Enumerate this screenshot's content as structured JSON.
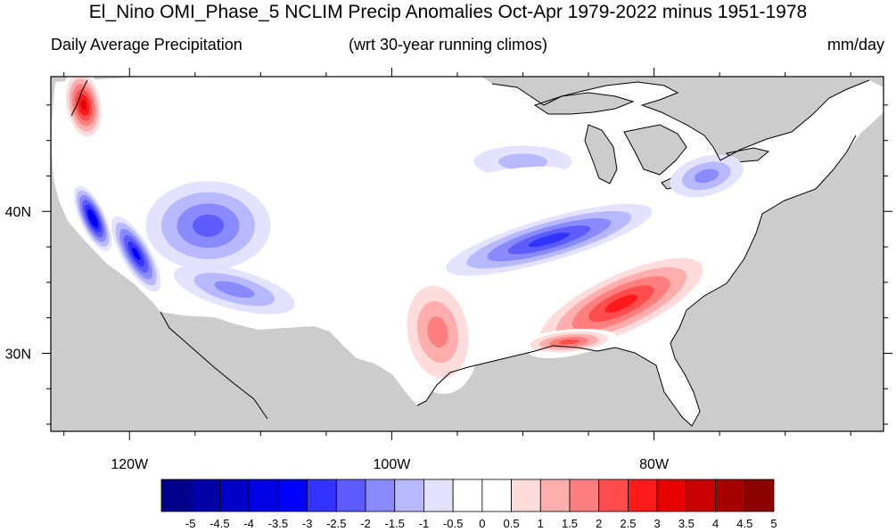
{
  "title": "El_Nino OMI_Phase_5 NCLIM Precip Anomalies Oct-Apr 1979-2022 minus 1951-1978",
  "subtitle_left": "Daily Average Precipitation",
  "subtitle_center": "(wrt 30-year running climos)",
  "subtitle_right": "mm/day",
  "map": {
    "lon_range": [
      -126.0,
      -62.5
    ],
    "lat_range": [
      24.5,
      49.5
    ],
    "lon_ticks": [
      {
        "value": -120,
        "label": "120W"
      },
      {
        "value": -100,
        "label": "100W"
      },
      {
        "value": -80,
        "label": "80W"
      }
    ],
    "lat_ticks": [
      {
        "value": 40,
        "label": "40N"
      },
      {
        "value": 30,
        "label": "30N"
      }
    ],
    "land_color": "#ffffff",
    "masked_color": "#cccccc",
    "anomaly_regions": [
      {
        "name": "pacific-northwest-wet",
        "lon": -123.5,
        "lat": 47.5,
        "value": 3.5
      },
      {
        "name": "california-coast-dry",
        "lon": -122.8,
        "lat": 39.5,
        "value": -3.5
      },
      {
        "name": "sierra-nevada-dry",
        "lon": -119.5,
        "lat": 37.0,
        "value": -3.0
      },
      {
        "name": "great-basin-dry",
        "lon": -114.0,
        "lat": 39.0,
        "value": -2.0
      },
      {
        "name": "southwest-dry",
        "lon": -112.0,
        "lat": 34.5,
        "value": -1.5
      },
      {
        "name": "ohio-valley-dry",
        "lon": -88.0,
        "lat": 38.0,
        "value": -2.5
      },
      {
        "name": "upper-midwest-dry",
        "lon": -90.0,
        "lat": 43.5,
        "value": -1.0
      },
      {
        "name": "new-england-dry",
        "lon": -76.0,
        "lat": 42.5,
        "value": -1.5
      },
      {
        "name": "southeast-wet",
        "lon": -82.5,
        "lat": 33.5,
        "value": 3.0
      },
      {
        "name": "gulf-coast-wet",
        "lon": -86.5,
        "lat": 30.8,
        "value": 2.5
      },
      {
        "name": "texas-wet",
        "lon": -96.5,
        "lat": 31.5,
        "value": 2.0
      },
      {
        "name": "central-plains-wet",
        "lon": -94.0,
        "lat": 40.5,
        "value": 0.5
      }
    ]
  },
  "colorbar": {
    "labels": [
      "-5",
      "-4.5",
      "-4",
      "-3.5",
      "-3",
      "-2.5",
      "-2",
      "-1.5",
      "-1",
      "-0.5",
      "0",
      "0.5",
      "1",
      "1.5",
      "2",
      "2.5",
      "3",
      "3.5",
      "4",
      "4.5",
      "5"
    ],
    "colors": [
      "#00008b",
      "#0000a8",
      "#0000c6",
      "#0000e3",
      "#0000ff",
      "#3333ff",
      "#5c5cff",
      "#8a8aff",
      "#b8b8ff",
      "#e3e3ff",
      "#ffffff",
      "#ffffff",
      "#ffdcdc",
      "#ffadad",
      "#ff7f7f",
      "#ff4d4d",
      "#ff1a1a",
      "#e60000",
      "#c80000",
      "#a80000",
      "#8b0000"
    ]
  }
}
